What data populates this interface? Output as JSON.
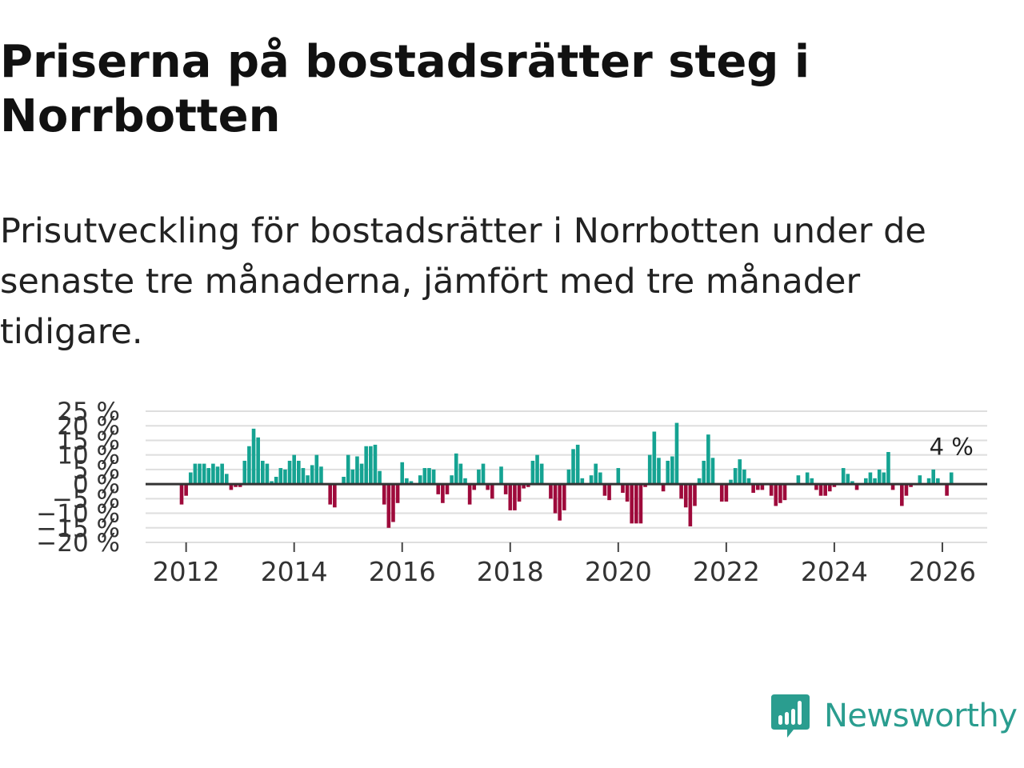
{
  "header": {
    "title": "Priserna på bostadsrätter steg i Norrbotten",
    "subtitle": "Prisutveckling för bostadsrätter i Norrbotten under de senaste tre månaderna, jämfört med tre månader tidigare."
  },
  "brand": {
    "name": "Newsworthy",
    "color": "#2a9d8f",
    "icon": "bar-chart-speech-bubble-icon"
  },
  "colors": {
    "positive": "#15a392",
    "negative": "#9e0a3b",
    "grid": "#dedede",
    "zero": "#333333"
  },
  "chart_data": {
    "type": "bar",
    "title": "Priserna på bostadsrätter steg i Norrbotten",
    "xlabel": "",
    "ylabel": "",
    "ylim": [
      -20,
      25
    ],
    "yticks": [
      25,
      20,
      15,
      10,
      5,
      0,
      -5,
      -10,
      -15,
      -20
    ],
    "ytick_labels": [
      "25 %",
      "20 %",
      "15 %",
      "10 %",
      "5 %",
      "0 %",
      "−5 %",
      "−10 %",
      "−15 %",
      "−20 %"
    ],
    "xlim": [
      2011.25,
      2026.83
    ],
    "xticks": [
      2012,
      2014,
      2016,
      2018,
      2020,
      2022,
      2024,
      2026
    ],
    "xtick_labels": [
      "2012",
      "2014",
      "2016",
      "2018",
      "2020",
      "2022",
      "2024",
      "2026"
    ],
    "last_value_label": "4 %",
    "start": [
      2011,
      12
    ],
    "values": [
      -7,
      -4,
      4,
      7,
      7,
      7,
      5.5,
      7,
      6,
      7,
      3.5,
      -2,
      -1,
      -1,
      8,
      13,
      19,
      16,
      8,
      7,
      1,
      2.5,
      5.5,
      5,
      8,
      10,
      8,
      5.5,
      3,
      6.5,
      10,
      6,
      0,
      -7,
      -8,
      0,
      2.5,
      10,
      5,
      9.5,
      7,
      13,
      13,
      13.5,
      4.5,
      -7,
      -15,
      -13,
      -6.5,
      7.5,
      2,
      1,
      0,
      3,
      5.5,
      5.5,
      5,
      -3.5,
      -6.5,
      -3.5,
      3,
      10.5,
      7,
      2,
      -7,
      -2,
      5,
      7,
      -2,
      -5,
      0,
      6,
      -3.5,
      -9,
      -9,
      -6,
      -1.5,
      -1,
      8,
      10,
      7,
      0,
      -5,
      -10,
      -12.5,
      -9,
      5,
      12,
      13.5,
      2,
      0,
      3,
      7,
      4,
      -4,
      -5.5,
      0,
      5.5,
      -3,
      -6,
      -13.5,
      -13.5,
      -13.5,
      -1,
      10,
      18,
      9,
      -2.5,
      8,
      9.5,
      21,
      -5,
      -8,
      -14.5,
      -7.5,
      2,
      8,
      17,
      9,
      0,
      -6,
      -6,
      1.5,
      5.5,
      8.5,
      5,
      2,
      -3,
      -2,
      -2,
      0,
      -4,
      -7.5,
      -6.5,
      -5.5,
      0,
      0,
      3,
      0,
      4,
      2,
      -2,
      -4,
      -4,
      -2.5,
      -1,
      0,
      5.5,
      3.5,
      1,
      -2,
      0,
      2,
      4,
      2,
      5,
      4,
      11,
      -2,
      0,
      -7.5,
      -4,
      -1,
      0,
      3,
      0,
      2,
      5,
      2,
      0,
      -4,
      4
    ]
  }
}
